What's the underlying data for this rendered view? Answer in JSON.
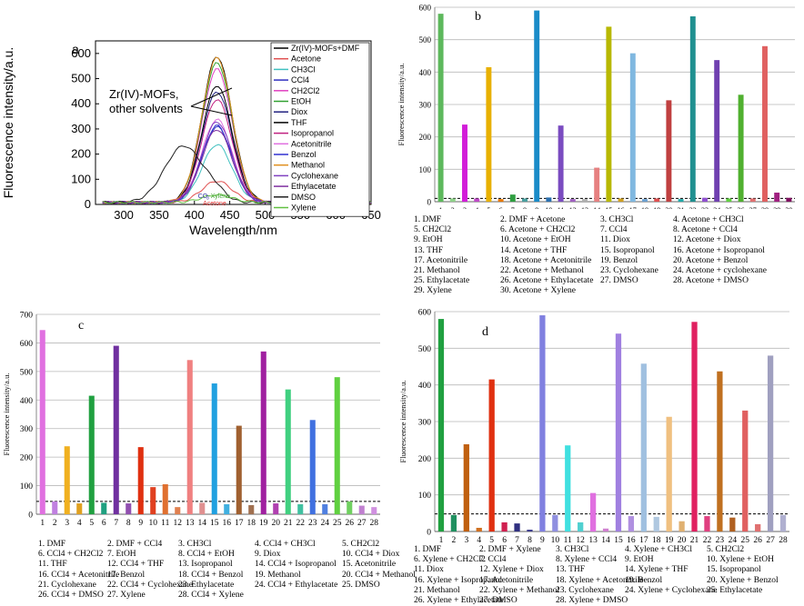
{
  "colors": {
    "grid": "#b8b8b8",
    "threshold": "#000000"
  },
  "chart_data": [
    {
      "type": "line",
      "panel_letter": "a",
      "xlabel": "Wavelength/nm",
      "ylabel": "Fluorescence intensity/a.u.",
      "xlim": [
        260,
        650
      ],
      "ylim": [
        0,
        650
      ],
      "xticks": [
        300,
        350,
        400,
        450,
        500,
        550,
        600,
        650
      ],
      "yticks": [
        0,
        100,
        200,
        300,
        400,
        500,
        600
      ],
      "annotation": "Zr(IV)-MOFs,\nother solvents",
      "annotation_lines": [
        "Zr(IV)-MOFs,",
        "other solvents"
      ],
      "labels_on_plot": [
        "CO",
        "3",
        "Xylene",
        "Acetone"
      ],
      "legend": [
        "Zr(IV)-MOFs+DMF",
        "Acetone",
        "CH3Cl",
        "CCl4",
        "CH2Cl2",
        "EtOH",
        "Diox",
        "THF",
        "Isopropanol",
        "Acetonitrile",
        "Benzol",
        "Methanol",
        "Cyclohexane",
        "Ethylacetate",
        "DMSO",
        "Xylene"
      ],
      "series": [
        {
          "name": "Zr(IV)-MOFs+DMF",
          "color": "#000000",
          "peak": 580
        },
        {
          "name": "Acetone",
          "color": "#e05050",
          "peak": 85
        },
        {
          "name": "CH3Cl",
          "color": "#40c0c0",
          "peak": 230
        },
        {
          "name": "CCl4",
          "color": "#3030c0",
          "peak": 300
        },
        {
          "name": "CH2Cl2",
          "color": "#e040c0",
          "peak": 530
        },
        {
          "name": "EtOH",
          "color": "#30a030",
          "peak": 555
        },
        {
          "name": "Diox",
          "color": "#202080",
          "peak": 440
        },
        {
          "name": "THF",
          "color": "#000000",
          "peak": 465
        },
        {
          "name": "Isopropanol",
          "color": "#c02080",
          "peak": 410
        },
        {
          "name": "Acetonitrile",
          "color": "#e070e0",
          "peak": 330
        },
        {
          "name": "Benzol",
          "color": "#3030d0",
          "peak": 305
        },
        {
          "name": "Methanol",
          "color": "#e09020",
          "peak": 575
        },
        {
          "name": "Cyclohexane",
          "color": "#8040c0",
          "peak": 320
        },
        {
          "name": "Ethylacetate",
          "color": "#8030a0",
          "peak": 290
        },
        {
          "name": "DMSO",
          "color": "#202020",
          "peak": 225
        },
        {
          "name": "Xylene",
          "color": "#60c040",
          "peak": 30
        }
      ]
    },
    {
      "type": "bar",
      "panel_letter": "b",
      "ylabel": "Fluorescence intensity/a.u.",
      "ylim": [
        0,
        600
      ],
      "yticks": [
        0,
        100,
        200,
        300,
        400,
        500,
        600
      ],
      "threshold": 10,
      "categories": [
        "1",
        "2",
        "3",
        "4",
        "5",
        "6",
        "7",
        "8",
        "9",
        "10",
        "11",
        "12",
        "13",
        "14",
        "15",
        "16",
        "17",
        "18",
        "19",
        "20",
        "21",
        "22",
        "23",
        "24",
        "25",
        "26",
        "27",
        "28",
        "29",
        "30"
      ],
      "values": [
        580,
        10,
        238,
        10,
        415,
        8,
        22,
        10,
        590,
        13,
        235,
        8,
        8,
        105,
        540,
        10,
        458,
        8,
        10,
        313,
        8,
        572,
        12,
        437,
        10,
        330,
        10,
        480,
        28,
        12
      ],
      "colors": [
        "#5db85c",
        "#8fd18a",
        "#d21dd8",
        "#c04ac8",
        "#e8b000",
        "#e87800",
        "#2e9e40",
        "#4aa0a0",
        "#1a8bc8",
        "#2a70b0",
        "#7a4cc0",
        "#a060c0",
        "#b0b0b0",
        "#e68080",
        "#b8b800",
        "#d0a020",
        "#80b8e0",
        "#6ba0d0",
        "#e05050",
        "#c04040",
        "#20a8a8",
        "#209090",
        "#9050d0",
        "#7040b0",
        "#60d040",
        "#50b030",
        "#e07070",
        "#e06060",
        "#a02080",
        "#801060"
      ],
      "legend": [
        "1. DMF",
        "2. DMF + Acetone",
        "3. CH3Cl",
        "4. Acetone + CH3Cl",
        "5. CH2Cl2",
        "6. Acetone + CH2Cl2",
        "7. CCl4",
        "8. Acetone + CCl4",
        "9. EtOH",
        "10. Acetone + EtOH",
        "11. Diox",
        "12. Acetone + Diox",
        "13. THF",
        "14. Acetone + THF",
        "15. Isopropanol",
        "16. Acetone + Isopropanol",
        "17. Acetonitrile",
        "18. Acetone + Acetonitrile",
        "19. Benzol",
        "20. Acetone + Benzol",
        "21. Methanol",
        "22. Acetone + Methanol",
        "23. Cyclohexane",
        "24. Acetone + cyclohexane",
        "25. Ethylacetate",
        "26. Acetone + Ethylacetate",
        "27. DMSO",
        "28. Acetone + DMSO",
        "29. Xylene",
        "30. Acetone + Xylene"
      ]
    },
    {
      "type": "bar",
      "panel_letter": "c",
      "ylabel": "Fluorescence intensity/a.u.",
      "ylim": [
        0,
        700
      ],
      "yticks": [
        0,
        100,
        200,
        300,
        400,
        500,
        600,
        700
      ],
      "threshold": 45,
      "categories": [
        "1",
        "2",
        "3",
        "4",
        "5",
        "6",
        "7",
        "8",
        "9",
        "10",
        "11",
        "12",
        "13",
        "14",
        "15",
        "16",
        "17",
        "18",
        "19",
        "20",
        "21",
        "22",
        "23",
        "24",
        "25",
        "26",
        "27",
        "28"
      ],
      "values": [
        645,
        45,
        238,
        38,
        415,
        40,
        590,
        38,
        235,
        95,
        105,
        25,
        540,
        40,
        458,
        35,
        310,
        32,
        570,
        38,
        437,
        35,
        330,
        35,
        480,
        45,
        30,
        25
      ],
      "colors": [
        "#e070e0",
        "#c080e0",
        "#f0b020",
        "#e0a020",
        "#20a040",
        "#20a080",
        "#7030a0",
        "#9050b0",
        "#e03010",
        "#e04020",
        "#e07030",
        "#e08050",
        "#f08080",
        "#e09090",
        "#20a0e0",
        "#40b0e0",
        "#a06030",
        "#a07050",
        "#a020a0",
        "#b040b0",
        "#40d080",
        "#40c0a0",
        "#4070e0",
        "#5080e0",
        "#60d040",
        "#70d060",
        "#c080d0",
        "#d090e0"
      ],
      "legend": [
        "1. DMF",
        "2. DMF + CCl4",
        "3. CH3Cl",
        "4. CCl4 + CH3Cl",
        "5. CH2Cl2",
        "6. CCl4 + CH2Cl2",
        "7. EtOH",
        "8. CCl4 + EtOH",
        "9. Diox",
        "10. CCl4 + Diox",
        "11. THF",
        "12. CCl4 + THF",
        "13. Isopropanol",
        "14. CCl4 + Isopropanol",
        "15. Acetonitrile",
        "16. CCl4 + Acetonitrile",
        "17. Benzol",
        "18. CCl4 + Benzol",
        "19. Methanol",
        "20. CCl4 + Methanol",
        "21. Cyclohexane",
        "22. CCl4 + Cyclohexane",
        "23. Ethylacetate",
        "24. CCl4 + Ethylacetate",
        "25. DMSO",
        "26. CCl4 + DMSO",
        "27. Xylene",
        "28. CCl4 + Xylene"
      ]
    },
    {
      "type": "bar",
      "panel_letter": "d",
      "ylabel": "Fluorescence intensity/a.u.",
      "ylim": [
        0,
        600
      ],
      "yticks": [
        0,
        100,
        200,
        300,
        400,
        500,
        600
      ],
      "threshold": 48,
      "categories": [
        "1",
        "2",
        "3",
        "4",
        "5",
        "6",
        "7",
        "8",
        "9",
        "10",
        "11",
        "12",
        "13",
        "14",
        "15",
        "16",
        "17",
        "18",
        "19",
        "20",
        "21",
        "22",
        "23",
        "24",
        "25",
        "26",
        "27",
        "28"
      ],
      "values": [
        580,
        45,
        238,
        10,
        415,
        25,
        22,
        5,
        590,
        45,
        235,
        25,
        105,
        8,
        540,
        42,
        458,
        40,
        313,
        28,
        572,
        42,
        437,
        38,
        330,
        20,
        480,
        45
      ],
      "colors": [
        "#20a040",
        "#209060",
        "#c06010",
        "#d07020",
        "#e03010",
        "#d02050",
        "#303080",
        "#404090",
        "#8080e0",
        "#9090e0",
        "#40e0e0",
        "#50d0d0",
        "#e070e0",
        "#d080d0",
        "#a080e0",
        "#b090e0",
        "#a0c0e0",
        "#b0c8e0",
        "#f0c080",
        "#e0b070",
        "#e02060",
        "#e04080",
        "#c07020",
        "#b06020",
        "#e06060",
        "#e07070",
        "#a0a0c0",
        "#b0b0d0"
      ],
      "legend": [
        "1. DMF",
        "2. DMF + Xylene",
        "3. CH3Cl",
        "4. Xylene + CH3Cl",
        "5. CH2Cl2",
        "6. Xylene + CH2Cl2",
        "7. CCl4",
        "8. Xylene + CCl4",
        "9. EtOH",
        "10. Xylene + EtOH",
        "11. Diox",
        "12. Xylene + Diox",
        "13. THF",
        "14. Xylene + THF",
        "15. Isopropanol",
        "16. Xylene + Isopropanol",
        "17. Acetonitrile",
        "18. Xylene + Acetonitrile",
        "19. Benzol",
        "20. Xylene + Benzol",
        "21. Methanol",
        "22. Xylene + Methanol",
        "23. Cyclohexane",
        "24. Xylene + Cyclohexane",
        "25. Ethylacetate",
        "26. Xylene + Ethylacetate",
        "27. DMSO",
        "28. Xylene + DMSO"
      ]
    }
  ]
}
